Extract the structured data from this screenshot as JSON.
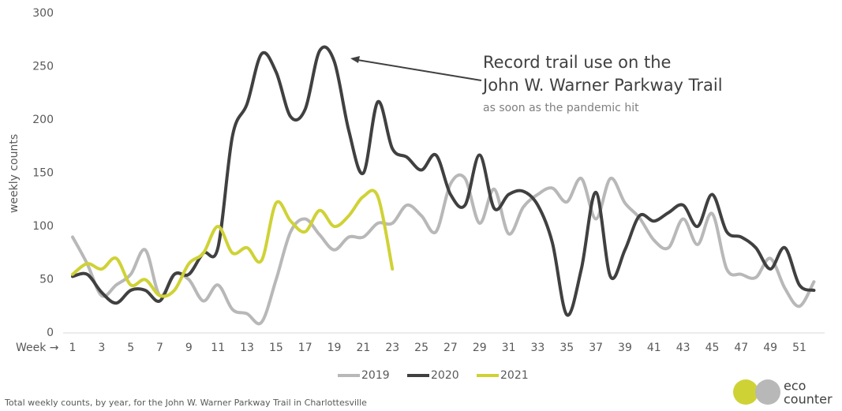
{
  "chart_data": {
    "type": "line",
    "y_label": "weekly counts",
    "x_label": "Week →",
    "categories": [
      "1",
      null,
      "3",
      null,
      "5",
      null,
      "7",
      null,
      "9",
      null,
      "11",
      null,
      "13",
      null,
      "15",
      null,
      "17",
      null,
      "19",
      null,
      "21",
      null,
      "23",
      null,
      "25",
      null,
      "27",
      null,
      "29",
      null,
      "31",
      null,
      "33",
      null,
      "35",
      null,
      "37",
      null,
      "39",
      null,
      "41",
      null,
      "43",
      null,
      "45",
      null,
      "47",
      null,
      "49",
      null,
      "51",
      null
    ],
    "series": [
      {
        "name": "2019",
        "color": "#b8b8b8",
        "values": [
          90,
          65,
          35,
          45,
          55,
          78,
          35,
          55,
          50,
          30,
          45,
          22,
          18,
          10,
          50,
          95,
          107,
          92,
          78,
          90,
          90,
          103,
          103,
          120,
          110,
          95,
          140,
          145,
          103,
          135,
          93,
          118,
          130,
          136,
          123,
          145,
          107,
          145,
          122,
          108,
          87,
          80,
          107,
          83,
          112,
          60,
          55,
          52,
          70,
          42,
          25,
          48
        ]
      },
      {
        "name": "2020",
        "color": "#404040",
        "values": [
          53,
          55,
          38,
          28,
          40,
          40,
          30,
          55,
          55,
          75,
          80,
          185,
          215,
          262,
          245,
          203,
          210,
          265,
          255,
          190,
          150,
          217,
          173,
          165,
          153,
          167,
          130,
          120,
          167,
          117,
          130,
          133,
          120,
          85,
          17,
          60,
          132,
          53,
          78,
          110,
          105,
          113,
          120,
          100,
          130,
          95,
          90,
          80,
          60,
          80,
          45,
          40
        ]
      },
      {
        "name": "2021",
        "color": "#cfd235",
        "values": [
          55,
          65,
          60,
          70,
          45,
          50,
          35,
          40,
          65,
          75,
          100,
          75,
          80,
          68,
          122,
          105,
          95,
          115,
          100,
          110,
          128,
          128,
          60,
          null,
          null,
          null,
          null,
          null,
          null,
          null,
          null,
          null,
          null,
          null,
          null,
          null,
          null,
          null,
          null,
          null,
          null,
          null,
          null,
          null,
          null,
          null,
          null,
          null,
          null,
          null,
          null,
          null
        ]
      }
    ],
    "ylim": [
      0,
      300
    ],
    "yticks": [
      0,
      50,
      100,
      150,
      200,
      250,
      300
    ],
    "annotations": [
      "Record trail use on the",
      "John W. Warner Parkway Trail",
      "as soon as the pandemic hit"
    ],
    "footnote": "Total weekly counts, by year, for the John W. Warner Parkway Trail in Charlottesville",
    "logo": [
      "eco",
      "counter"
    ]
  }
}
